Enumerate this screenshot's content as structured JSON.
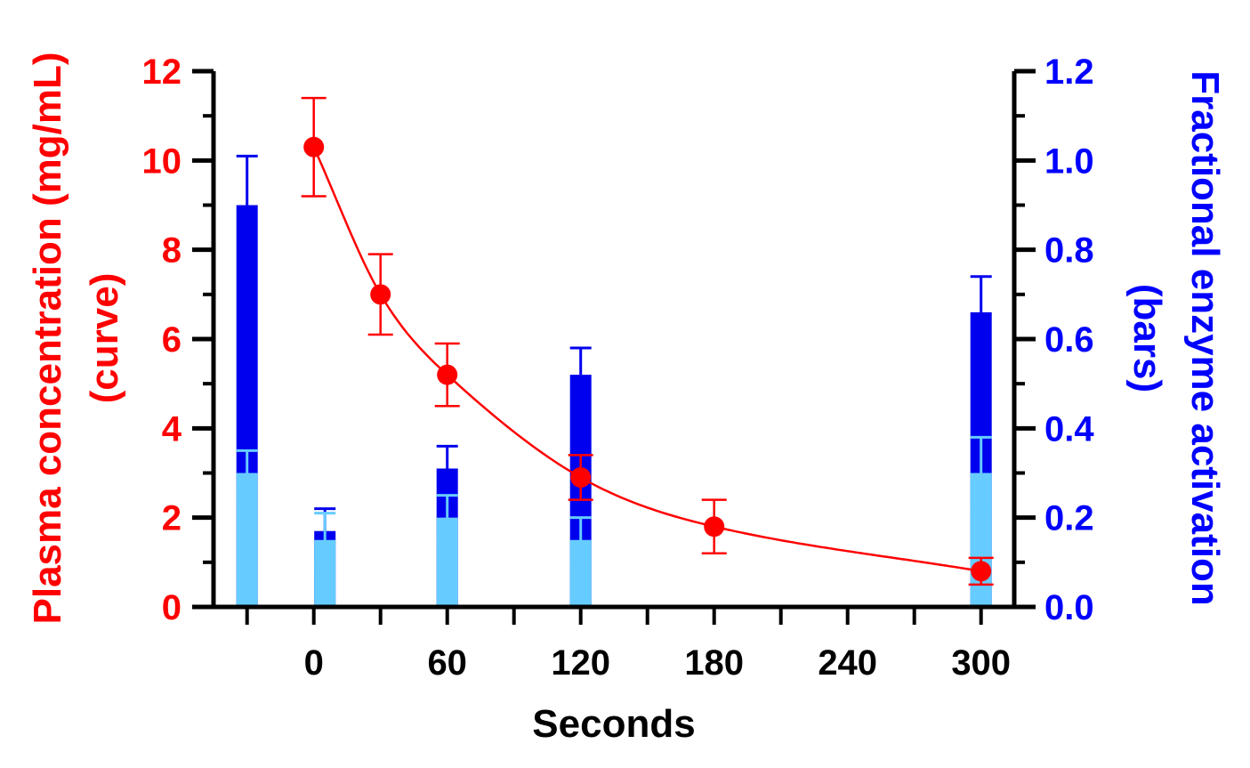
{
  "chart_data": {
    "type": "bar",
    "x_axis": {
      "label": "Seconds",
      "range": [
        -50,
        310
      ],
      "tick_labels": [
        "0",
        "60",
        "120",
        "180",
        "240",
        "300"
      ],
      "tick_values": [
        0,
        60,
        120,
        180,
        240,
        300
      ],
      "minor_tick_values": [
        -30,
        30,
        90,
        150,
        210,
        270
      ]
    },
    "y_left": {
      "label_line1": "Plasma concentration  (mg/mL)",
      "label_line2": "(curve)",
      "range": [
        0,
        12
      ],
      "tick_labels": [
        "0",
        "2",
        "4",
        "6",
        "8",
        "10",
        "12"
      ],
      "tick_values": [
        0,
        2,
        4,
        6,
        8,
        10,
        12
      ],
      "color": "#ff0000"
    },
    "y_right": {
      "label_line1": "Fractional enzyme activation",
      "label_line2": "(bars)",
      "range": [
        0,
        1.2
      ],
      "tick_labels": [
        "0.0",
        "0.2",
        "0.4",
        "0.6",
        "0.8",
        "1.0",
        "1.2"
      ],
      "tick_values": [
        0,
        0.2,
        0.4,
        0.6,
        0.8,
        1.0,
        1.2
      ],
      "color": "#0000ff"
    },
    "curve_points": [
      {
        "x": 0,
        "y": 10.3,
        "err": 1.1
      },
      {
        "x": 30,
        "y": 7.0,
        "err": 0.9
      },
      {
        "x": 60,
        "y": 5.2,
        "err": 0.7
      },
      {
        "x": 120,
        "y": 2.9,
        "err": 0.5
      },
      {
        "x": 180,
        "y": 1.8,
        "err": 0.6
      },
      {
        "x": 300,
        "y": 0.8,
        "err": 0.3
      }
    ],
    "curve_color": "#ff0000",
    "bars": [
      {
        "x": -30,
        "dark": 0.9,
        "dark_err": 0.11,
        "light": 0.3,
        "light_err": 0.05
      },
      {
        "x": 5,
        "dark": 0.17,
        "dark_err": 0.05,
        "light": 0.15,
        "light_err": 0.06
      },
      {
        "x": 60,
        "dark": 0.31,
        "dark_err": 0.05,
        "light": 0.2,
        "light_err": 0.05
      },
      {
        "x": 120,
        "dark": 0.52,
        "dark_err": 0.06,
        "light": 0.15,
        "light_err": 0.05
      },
      {
        "x": 300,
        "dark": 0.66,
        "dark_err": 0.08,
        "light": 0.3,
        "light_err": 0.08
      }
    ],
    "bar_colors": {
      "dark": "#0000ee",
      "light": "#66ccff"
    }
  }
}
